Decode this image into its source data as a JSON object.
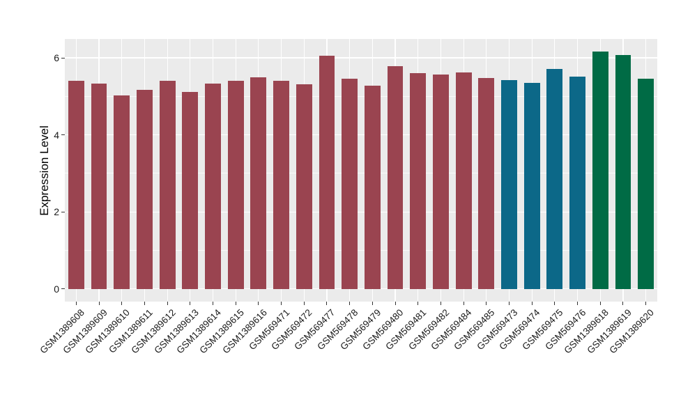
{
  "chart_data": {
    "type": "bar",
    "title": "",
    "xlabel": "",
    "ylabel": "Expression Level",
    "categories": [
      "GSM1389608",
      "GSM1389609",
      "GSM1389610",
      "GSM1389611",
      "GSM1389612",
      "GSM1389613",
      "GSM1389614",
      "GSM1389615",
      "GSM1389616",
      "GSM569471",
      "GSM569472",
      "GSM569477",
      "GSM569478",
      "GSM569479",
      "GSM569480",
      "GSM569481",
      "GSM569482",
      "GSM569484",
      "GSM569485",
      "GSM569473",
      "GSM569474",
      "GSM569475",
      "GSM569476",
      "GSM1389618",
      "GSM1389619",
      "GSM1389620"
    ],
    "values": [
      5.41,
      5.33,
      5.03,
      5.17,
      5.41,
      5.12,
      5.33,
      5.4,
      5.5,
      5.4,
      5.31,
      6.05,
      5.45,
      5.28,
      5.79,
      5.6,
      5.57,
      5.62,
      5.47,
      5.43,
      5.35,
      5.71,
      5.52,
      6.16,
      6.07,
      5.46
    ],
    "group_of_bar": [
      0,
      0,
      0,
      0,
      0,
      0,
      0,
      0,
      0,
      0,
      0,
      0,
      0,
      0,
      0,
      0,
      0,
      0,
      0,
      1,
      1,
      1,
      1,
      2,
      2,
      2
    ],
    "palette": [
      "#9A4450",
      "#0C6888",
      "#006B45"
    ],
    "yticks": [
      0,
      2,
      4,
      6
    ],
    "minor_gridlines": [
      1,
      3,
      5
    ],
    "ylim": [
      -0.33,
      6.49
    ],
    "x_tick_rotation": 45,
    "bar_width_fraction": 0.7,
    "grid": true,
    "legend_position": "none",
    "panel_bg": "#EBEBEB",
    "grid_color": "#FFFFFF",
    "axis_text_color": "#1A1A1A",
    "tick_color": "#333333"
  }
}
